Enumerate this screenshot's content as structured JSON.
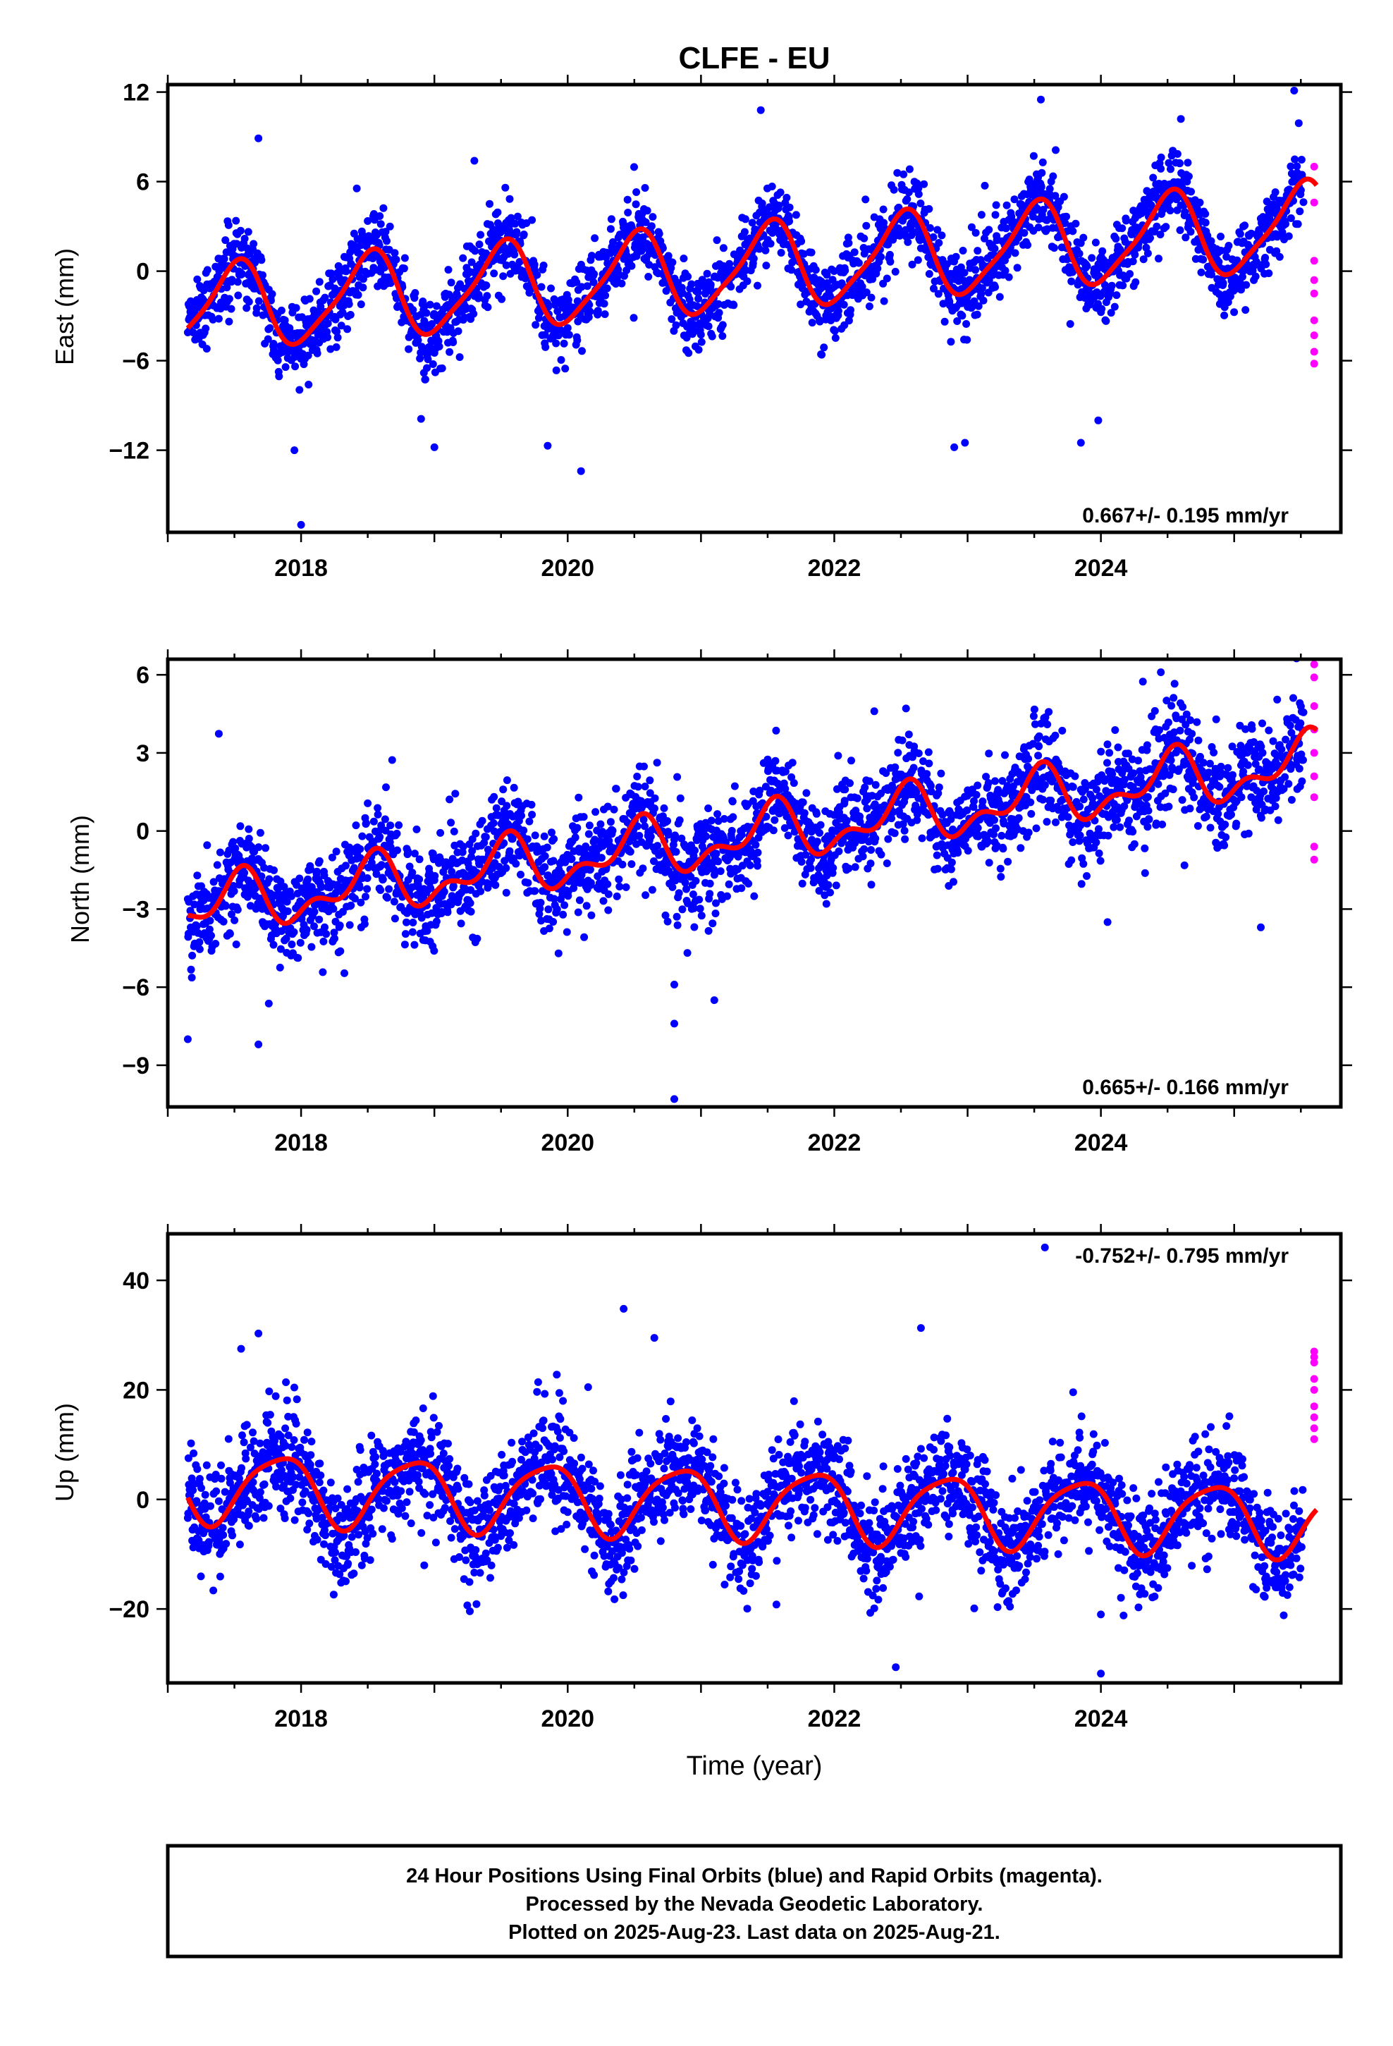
{
  "title": "CLFE - EU",
  "caption_lines": [
    "24 Hour Positions Using Final Orbits (blue) and Rapid Orbits (magenta).",
    "Processed by the Nevada Geodetic Laboratory.",
    "Plotted on 2025-Aug-23. Last data on 2025-Aug-21."
  ],
  "colors": {
    "final": "#0000ff",
    "rapid": "#ff00ff",
    "model": "#ff0000"
  },
  "chart_data": [
    {
      "type": "scatter",
      "ylabel": "East (mm)",
      "xlabel": "",
      "rate_label": "0.667+/- 0.195 mm/yr",
      "xlim": [
        2017.0,
        2025.8
      ],
      "ylim": [
        -17.5,
        12.5
      ],
      "xticks": [
        2018,
        2020,
        2022,
        2024
      ],
      "yticks": [
        12,
        6,
        0,
        -6,
        -12
      ],
      "ytick_labels": [
        "12",
        "6",
        "0",
        "−6",
        "−12"
      ],
      "model": {
        "offset": -2.6,
        "rate": 0.667,
        "amp1": 2.8,
        "phase1": -1.6,
        "amp2": 0.6,
        "phase2": 0.3,
        "t0": 2017.15
      },
      "noise_sd": 1.3,
      "rapid_values": [
        7.0,
        4.6,
        0.7,
        -0.6,
        -1.5,
        -3.3,
        -4.3,
        -5.4,
        -6.2
      ],
      "outliers": [
        [
          2017.68,
          8.9
        ],
        [
          2017.95,
          -12.0
        ],
        [
          2018.0,
          -17.0
        ],
        [
          2018.9,
          -9.9
        ],
        [
          2019.0,
          -11.8
        ],
        [
          2019.3,
          7.4
        ],
        [
          2019.85,
          -11.7
        ],
        [
          2020.1,
          -13.4
        ],
        [
          2022.9,
          -11.8
        ],
        [
          2022.98,
          -11.5
        ],
        [
          2023.55,
          11.5
        ],
        [
          2023.85,
          -11.5
        ],
        [
          2023.98,
          -10.0
        ],
        [
          2024.6,
          10.2
        ],
        [
          2025.45,
          12.1
        ]
      ]
    },
    {
      "type": "scatter",
      "ylabel": "North (mm)",
      "xlabel": "",
      "rate_label": "0.665+/- 0.166 mm/yr",
      "xlim": [
        2017.0,
        2025.8
      ],
      "ylim": [
        -10.6,
        6.6
      ],
      "xticks": [
        2018,
        2020,
        2022,
        2024
      ],
      "yticks": [
        6,
        3,
        0,
        -3,
        -6,
        -9
      ],
      "ytick_labels": [
        "6",
        "3",
        "0",
        "−3",
        "−6",
        "−9"
      ],
      "model": {
        "offset": -3.0,
        "rate": 0.665,
        "amp1": 0.9,
        "phase1": -1.7,
        "amp2": 0.55,
        "phase2": 0.5,
        "t0": 2017.15
      },
      "noise_sd": 0.95,
      "rapid_values": [
        6.4,
        5.9,
        4.8,
        3.9,
        3.0,
        2.1,
        1.3,
        -0.6,
        -1.1
      ],
      "outliers": [
        [
          2017.15,
          -8.0
        ],
        [
          2017.68,
          -8.2
        ],
        [
          2020.8,
          -10.3
        ],
        [
          2020.8,
          -7.4
        ],
        [
          2021.1,
          -6.5
        ],
        [
          2020.8,
          -5.9
        ],
        [
          2024.05,
          -3.5
        ],
        [
          2025.2,
          -3.7
        ],
        [
          2024.45,
          6.1
        ],
        [
          2022.3,
          4.6
        ]
      ]
    },
    {
      "type": "scatter",
      "ylabel": "Up (mm)",
      "xlabel": "Time (year)",
      "rate_label": "-0.752+/- 0.795 mm/yr",
      "xlim": [
        2017.0,
        2025.8
      ],
      "ylim": [
        -33.5,
        48.5
      ],
      "xticks": [
        2018,
        2020,
        2022,
        2024
      ],
      "yticks": [
        40,
        20,
        0,
        -20
      ],
      "ytick_labels": [
        "40",
        "20",
        "0",
        "−20"
      ],
      "model": {
        "offset": 2.5,
        "rate": -0.752,
        "amp1": 6.3,
        "phase1": 2.6,
        "amp2": 1.2,
        "phase2": 1.0,
        "t0": 2017.15
      },
      "noise_sd": 4.6,
      "rapid_values": [
        27.0,
        26.0,
        25.0,
        22.0,
        20.0,
        17.0,
        15.0,
        13.0,
        11.0
      ],
      "outliers": [
        [
          2017.68,
          30.3
        ],
        [
          2020.42,
          34.8
        ],
        [
          2022.65,
          31.3
        ],
        [
          2023.58,
          46.0
        ],
        [
          2024.0,
          -31.8
        ],
        [
          2024.0,
          -21.0
        ],
        [
          2017.55,
          27.5
        ],
        [
          2020.65,
          29.5
        ]
      ]
    }
  ]
}
